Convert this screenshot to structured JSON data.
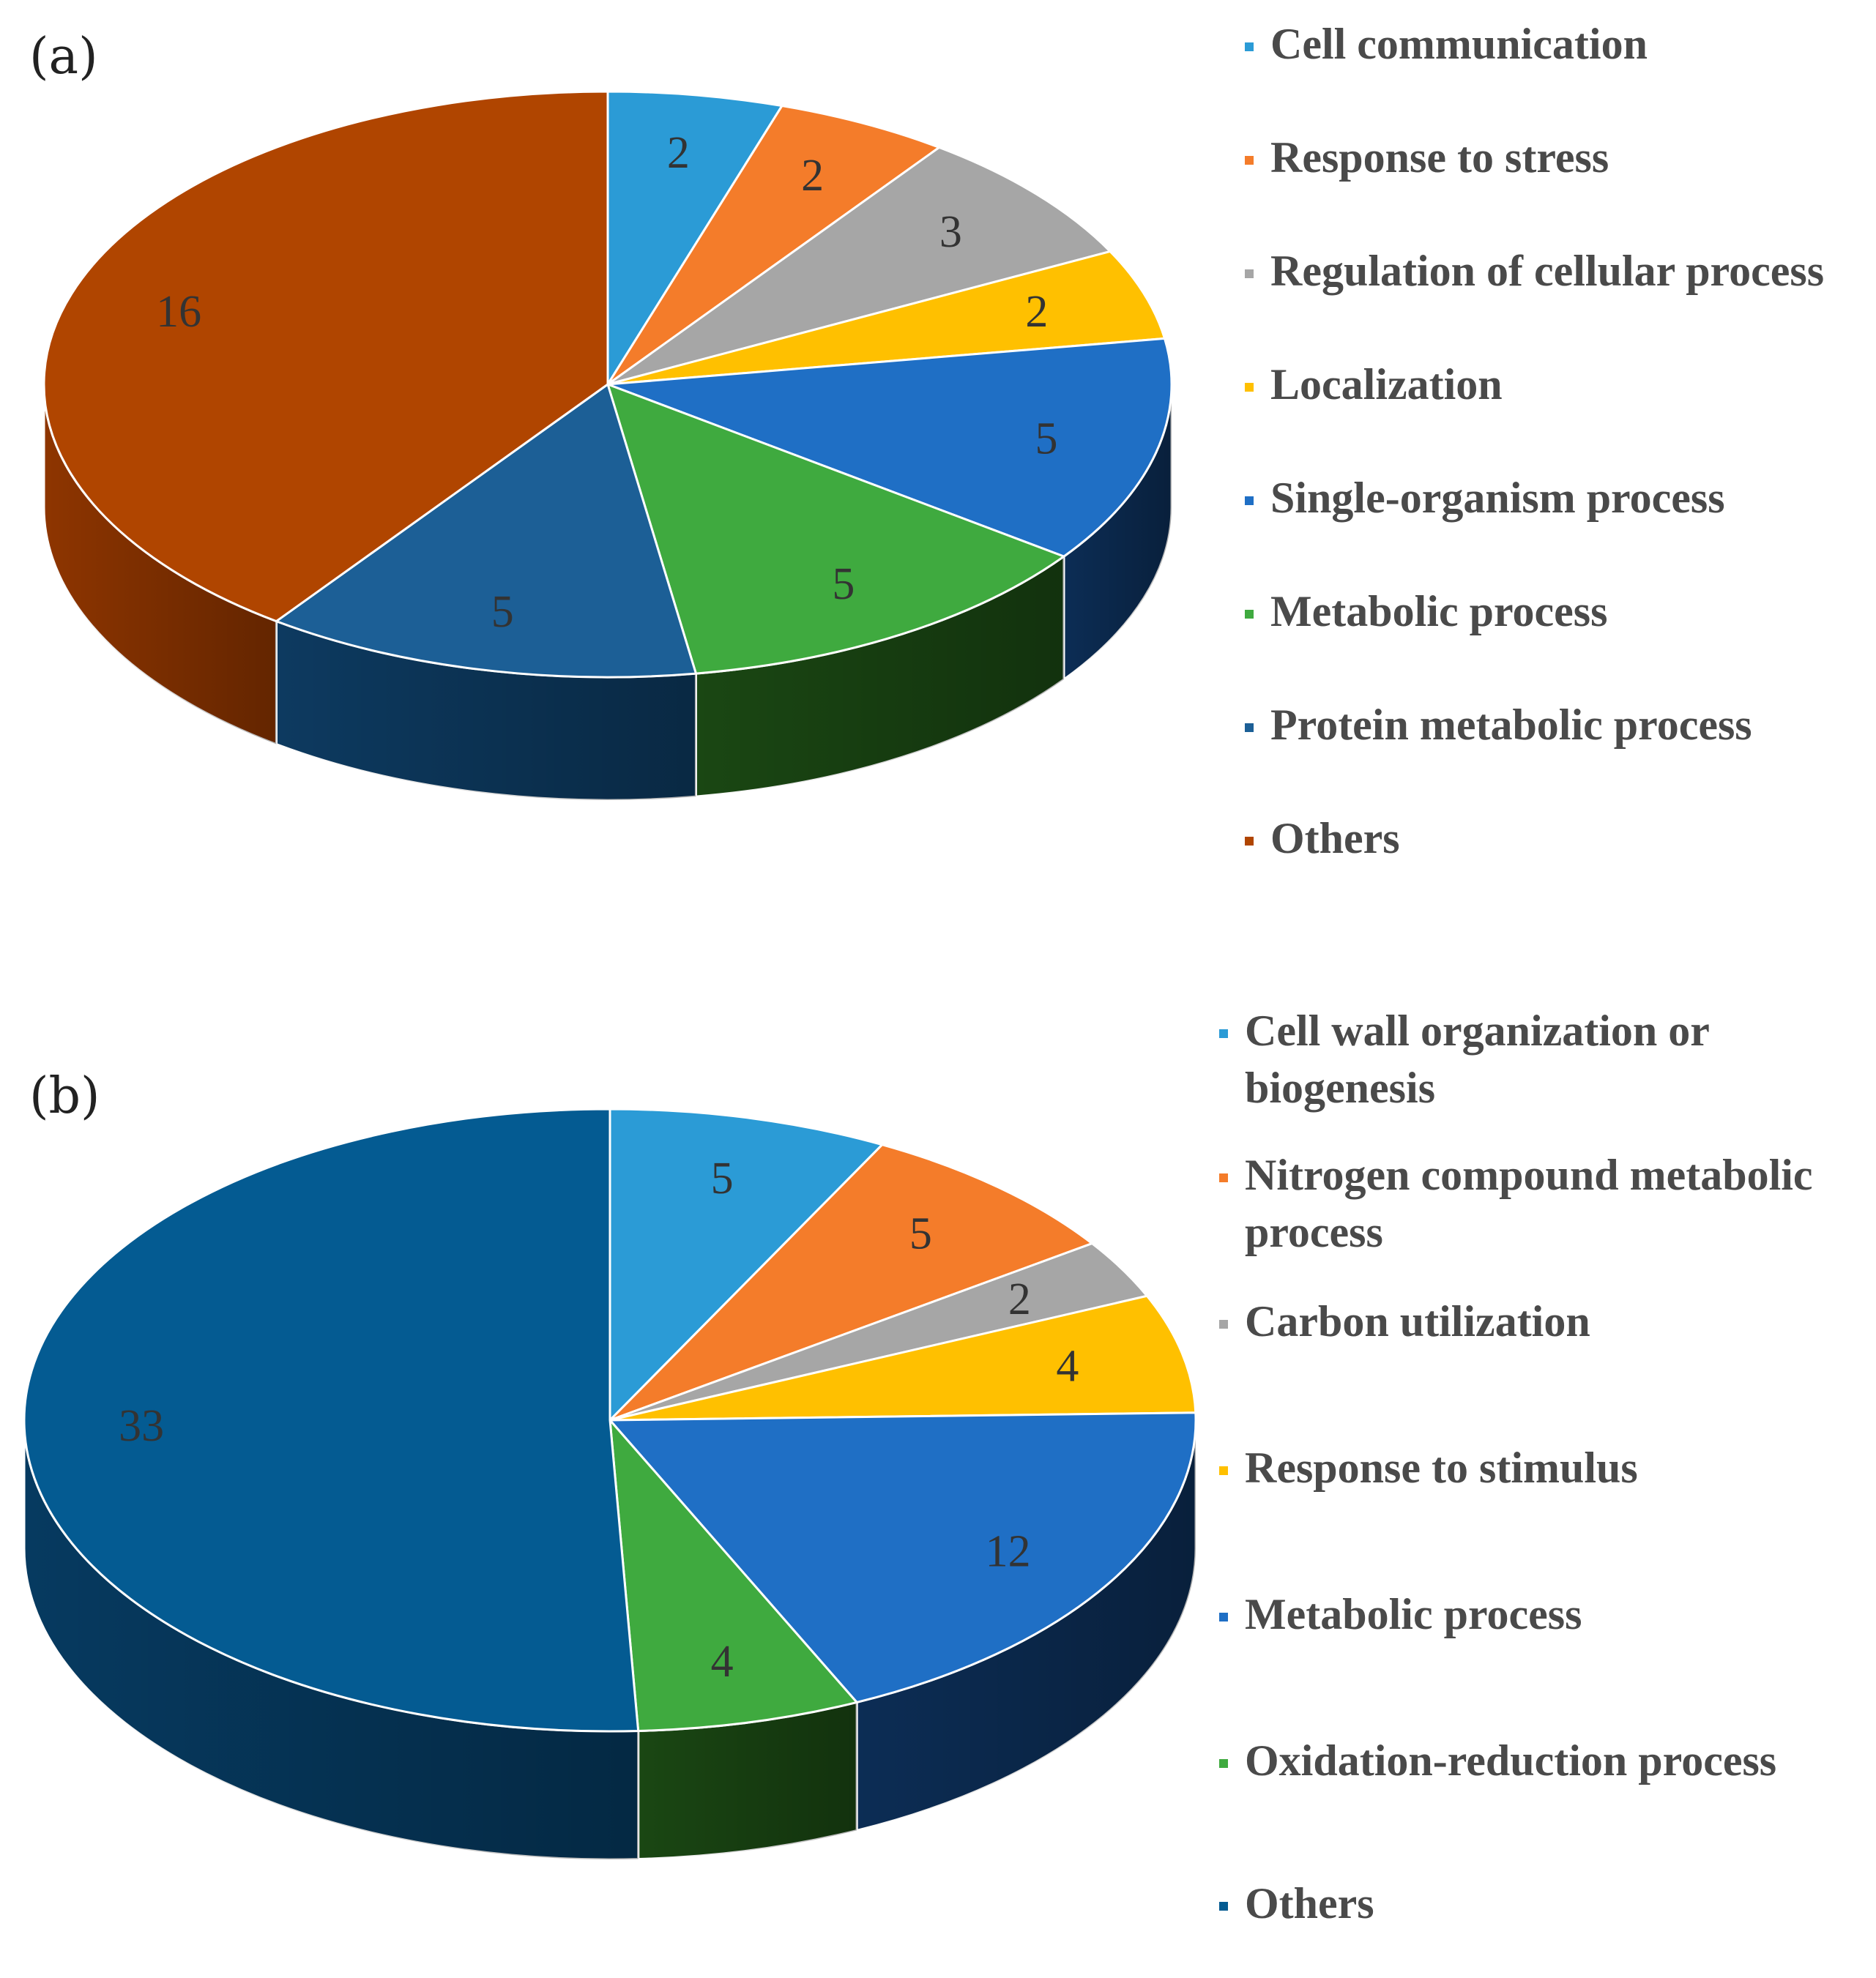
{
  "chart_data": [
    {
      "type": "pie",
      "panel_label": "(a)",
      "title": "",
      "categories": [
        "Cell communication",
        "Response to stress",
        "Regulation of cellular process",
        "Localization",
        "Single-organism process",
        "Metabolic process",
        "Protein metabolic process",
        "Others"
      ],
      "values": [
        2,
        2,
        3,
        2,
        5,
        5,
        5,
        16
      ],
      "data_labels": [
        "2",
        "2",
        "3",
        "2",
        "5",
        "5",
        "5",
        "16"
      ],
      "colors": [
        "#2b9bd6",
        "#f47c2a",
        "#a6a6a6",
        "#ffc000",
        "#1f6fc5",
        "#3faa3f",
        "#1c5f96",
        "#b04500"
      ],
      "side_colors": [
        "#1a6a96",
        "#a3511b",
        "#707070",
        "#b08400",
        "#0c2d55",
        "#1a4713",
        "#0d3a60",
        "#8e3500"
      ],
      "legend": {
        "position": "right",
        "entries": [
          [
            "Cell communication"
          ],
          [
            "Response to stress"
          ],
          [
            "Regulation of cellular process"
          ],
          [
            "Localization"
          ],
          [
            "Single-organism process"
          ],
          [
            "Metabolic process"
          ],
          [
            "Protein metabolic process"
          ],
          [
            "Others"
          ]
        ]
      }
    },
    {
      "type": "pie",
      "panel_label": "(b)",
      "title": "",
      "categories": [
        "Cell wall organization or biogenesis",
        "Nitrogen compound metabolic process",
        "Carbon utilization",
        "Response to stimulus",
        "Metabolic process",
        "Oxidation-reduction process",
        "Others"
      ],
      "values": [
        5,
        5,
        2,
        4,
        12,
        4,
        33
      ],
      "data_labels": [
        "5",
        "5",
        "2",
        "4",
        "12",
        "4",
        "33"
      ],
      "colors": [
        "#2b9bd6",
        "#f47c2a",
        "#a6a6a6",
        "#ffc000",
        "#1f6fc5",
        "#3faa3f",
        "#045b92"
      ],
      "side_colors": [
        "#1a6a96",
        "#a3511b",
        "#707070",
        "#b08400",
        "#0c2d55",
        "#1a4713",
        "#063a60"
      ],
      "legend": {
        "position": "right",
        "entries": [
          [
            "Cell wall organization or",
            "biogenesis"
          ],
          [
            "Nitrogen compound metabolic",
            "process"
          ],
          [
            "Carbon utilization"
          ],
          [
            "Response to stimulus"
          ],
          [
            "Metabolic process"
          ],
          [
            "Oxidation-reduction process"
          ],
          [
            "Others"
          ]
        ]
      }
    }
  ]
}
